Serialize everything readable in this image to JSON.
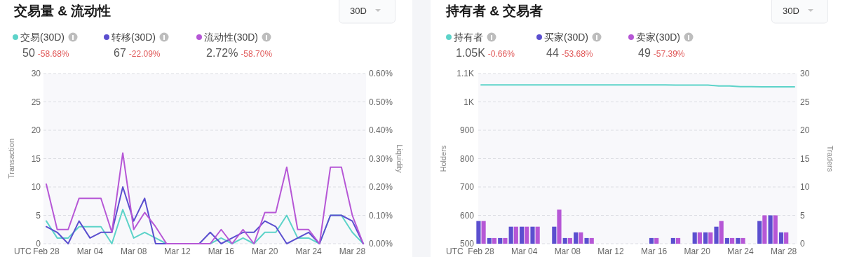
{
  "chart_data": [
    {
      "type": "line",
      "title": "交易量 & 流动性",
      "xlabel": "UTC",
      "ylabel": "Transaction",
      "y2label": "Liquidity",
      "categories": [
        "Feb 28",
        null,
        null,
        null,
        "Mar 04",
        null,
        null,
        null,
        "Mar 08",
        null,
        null,
        null,
        "Mar 12",
        null,
        null,
        null,
        "Mar 16",
        null,
        null,
        null,
        "Mar 20",
        null,
        null,
        null,
        "Mar 24",
        null,
        null,
        null,
        "Mar 28",
        null
      ],
      "ylim": [
        0,
        30
      ],
      "yticks": [
        0,
        5,
        10,
        15,
        20,
        25,
        30
      ],
      "y2lim": [
        0,
        0.6
      ],
      "y2ticks": [
        {
          "value": 0,
          "label": "0.00%"
        },
        {
          "value": 0.1,
          "label": "0.10%"
        },
        {
          "value": 0.2,
          "label": "0.20%"
        },
        {
          "value": 0.3,
          "label": "0.30%"
        },
        {
          "value": 0.4,
          "label": "0.40%"
        },
        {
          "value": 0.5,
          "label": "0.50%"
        },
        {
          "value": 0.6,
          "label": "0.60%"
        }
      ],
      "grid": "y",
      "legend": "top left",
      "series": [
        {
          "name": "交易(30D)",
          "color": "#5dd3c9",
          "values": [
            4,
            1,
            1,
            3,
            3,
            3,
            0,
            6,
            1,
            2,
            1,
            0,
            0,
            0,
            0,
            0,
            1,
            0,
            1,
            0,
            2,
            2,
            5,
            1,
            1,
            0,
            5,
            5,
            2,
            0
          ]
        },
        {
          "name": "转移(30D)",
          "color": "#5b4fcf",
          "values": [
            3,
            2,
            0,
            4,
            1,
            2,
            2,
            10,
            4,
            8,
            0,
            0,
            0,
            0,
            0,
            2,
            0,
            1,
            2,
            2,
            4,
            3,
            0,
            1,
            2,
            0,
            5,
            5,
            4,
            0
          ]
        },
        {
          "name": "流动性(30D)",
          "color": "#b657d6",
          "axis": "y2",
          "values": [
            0.21,
            0.05,
            0.05,
            0.16,
            0.16,
            0.16,
            0.04,
            0.32,
            0.05,
            0.11,
            0.06,
            0,
            0,
            0,
            0,
            0,
            0.05,
            0,
            0.05,
            0,
            0.11,
            0.11,
            0.27,
            0.05,
            0.05,
            0,
            0.27,
            0.27,
            0.1,
            0
          ]
        }
      ],
      "annotations": [
        "50",
        "-58.68%",
        "67",
        "-22.09%",
        "2.72%",
        "-58.70%",
        "30D"
      ]
    },
    {
      "type": "line",
      "title": "持有者 & 交易者",
      "xlabel": "UTC",
      "ylabel": "Holders",
      "y2label": "Traders",
      "categories": [
        "Feb 28",
        null,
        null,
        null,
        "Mar 04",
        null,
        null,
        null,
        "Mar 08",
        null,
        null,
        null,
        "Mar 12",
        null,
        null,
        null,
        "Mar 16",
        null,
        null,
        null,
        "Mar 20",
        null,
        null,
        null,
        "Mar 24",
        null,
        null,
        null,
        "Mar 28",
        null
      ],
      "ylim": [
        500,
        1100
      ],
      "yticks": [
        500,
        600,
        700,
        800,
        900,
        {
          "value": 1000,
          "label": "1K"
        },
        {
          "value": 1100,
          "label": "1.1K"
        }
      ],
      "y2lim": [
        0,
        30
      ],
      "y2ticks": [
        0,
        5,
        10,
        15,
        20,
        25,
        30
      ],
      "grid": "y",
      "legend": "top left",
      "series": [
        {
          "name": "持有者",
          "color": "#5dd3c9",
          "values": [
            1060,
            1060,
            1060,
            1060,
            1060,
            1060,
            1060,
            1060,
            1060,
            1060,
            1060,
            1060,
            1060,
            1060,
            1060,
            1060,
            1060,
            1060,
            1059,
            1059,
            1059,
            1059,
            1056,
            1056,
            1054,
            1054,
            1053,
            1053,
            1053,
            1053
          ]
        },
        {
          "name": "买家(30D)",
          "color": "#5b4fcf",
          "type": "bar",
          "axis": "y2",
          "values": [
            4,
            1,
            1,
            3,
            3,
            3,
            0,
            3,
            1,
            2,
            1,
            0,
            0,
            0,
            0,
            0,
            1,
            0,
            1,
            0,
            2,
            2,
            3,
            1,
            1,
            0,
            4,
            5,
            2,
            0
          ]
        },
        {
          "name": "卖家(30D)",
          "color": "#b657d6",
          "type": "bar",
          "axis": "y2",
          "values": [
            4,
            1,
            1,
            3,
            3,
            3,
            0,
            6,
            1,
            2,
            1,
            0,
            0,
            0,
            0,
            0,
            1,
            0,
            1,
            0,
            2,
            2,
            4,
            1,
            1,
            0,
            5,
            5,
            2,
            0
          ]
        }
      ],
      "annotations": [
        "1.05K",
        "-0.66%",
        "44",
        "-53.68%",
        "49",
        "-57.39%",
        "30D"
      ]
    }
  ]
}
